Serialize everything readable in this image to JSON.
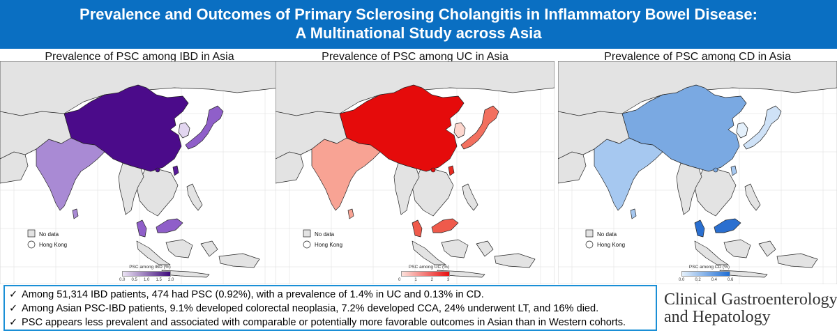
{
  "header": {
    "title_line1": "Prevalence and Outcomes of Primary Sclerosing Cholangitis in Inflammatory Bowel Disease:",
    "title_line2": "A Multinational Study across Asia",
    "background_color": "#0a6fc2"
  },
  "maps": [
    {
      "title": "Prevalence of PSC among IBD in Asia",
      "legend_no_data": "No data",
      "legend_hong_kong": "Hong Kong",
      "scale_title": "PSC among IBD (%)",
      "scale_ticks": [
        "0.0",
        "0.5",
        "1.0",
        "1.5",
        "2.0"
      ],
      "scale_colors": [
        "#ece4f4",
        "#3e0a7c"
      ],
      "region_colors": {
        "china": "#4b0b8a",
        "india": "#a98ad4",
        "korea": "#e2d6f0",
        "japan": "#8f5fc9",
        "malaysia": "#8f5fc9",
        "taiwan": "#5a1a9a"
      }
    },
    {
      "title": "Prevalence of PSC among UC in Asia",
      "legend_no_data": "No data",
      "legend_hong_kong": "Hong Kong",
      "scale_title": "PSC among UC (%)",
      "scale_ticks": [
        "0",
        "1",
        "2",
        "3"
      ],
      "scale_colors": [
        "#fde2dc",
        "#e81010"
      ],
      "region_colors": {
        "china": "#e50b0b",
        "india": "#f8a394",
        "korea": "#fcd6cd",
        "japan": "#f2705f",
        "malaysia": "#ef5a4b",
        "taiwan": "#e82a20"
      }
    },
    {
      "title": "Prevalence of PSC among CD in Asia",
      "legend_no_data": "No data",
      "legend_hong_kong": "Hong Kong",
      "scale_title": "PSC among CD (%)",
      "scale_ticks": [
        "0.0",
        "0.2",
        "0.4",
        "0.6"
      ],
      "scale_colors": [
        "#e4f0fb",
        "#1f6ed4"
      ],
      "region_colors": {
        "china": "#7aa9e2",
        "india": "#a6c8f0",
        "korea": "#e4f0fb",
        "japan": "#cfe2f7",
        "malaysia": "#2a6fd0",
        "taiwan": "#a6c8f0"
      }
    }
  ],
  "findings": [
    "Among 51,314 IBD patients, 474 had PSC (0.92%), with a prevalence of 1.4% in UC and 0.13% in CD.",
    "Among Asian PSC-IBD patients, 9.1% developed colorectal neoplasia, 7.2% developed CCA, 24% underwent LT, and 16% died.",
    "PSC appears less prevalent and associated with comparable or potentially more favorable outcomes in Asian than in Western cohorts."
  ],
  "check_symbol": "✓",
  "journal": {
    "line1": "Clinical Gastroenterology",
    "line2": "and Hepatology"
  }
}
